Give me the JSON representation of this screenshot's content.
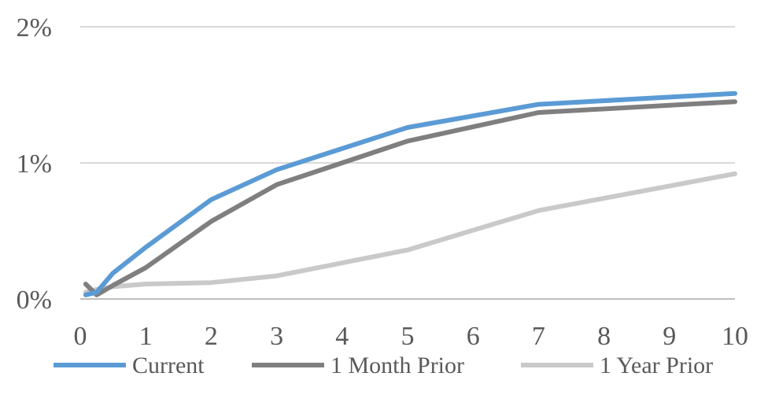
{
  "chart_data": {
    "type": "line",
    "title": "",
    "xlabel": "",
    "ylabel": "",
    "xlim": [
      0,
      10
    ],
    "ylim": [
      0,
      2
    ],
    "x_ticks": [
      0,
      1,
      2,
      3,
      4,
      5,
      6,
      7,
      8,
      9,
      10
    ],
    "x_tick_labels": [
      "0",
      "1",
      "2",
      "3",
      "4",
      "5",
      "6",
      "7",
      "8",
      "9",
      "10"
    ],
    "y_ticks": [
      0,
      1,
      2
    ],
    "y_tick_labels": [
      "0%",
      "1%",
      "2%"
    ],
    "grid": "horizontal",
    "legend_position": "bottom",
    "series": [
      {
        "name": "Current",
        "color": "#5b9bd5",
        "x": [
          0.083,
          0.25,
          0.5,
          1,
          2,
          3,
          5,
          7,
          10
        ],
        "y": [
          0.03,
          0.05,
          0.19,
          0.38,
          0.73,
          0.95,
          1.26,
          1.43,
          1.51
        ]
      },
      {
        "name": "1 Month Prior",
        "color": "#7f7f7f",
        "x": [
          0.083,
          0.25,
          0.5,
          1,
          2,
          3,
          5,
          7,
          10
        ],
        "y": [
          0.11,
          0.03,
          0.1,
          0.23,
          0.57,
          0.84,
          1.16,
          1.37,
          1.45
        ]
      },
      {
        "name": "1 Year Prior",
        "color": "#c9c9c9",
        "x": [
          0.083,
          0.25,
          0.5,
          1,
          2,
          3,
          5,
          7,
          10
        ],
        "y": [
          0.05,
          0.07,
          0.09,
          0.11,
          0.12,
          0.17,
          0.36,
          0.65,
          0.92
        ]
      }
    ]
  }
}
